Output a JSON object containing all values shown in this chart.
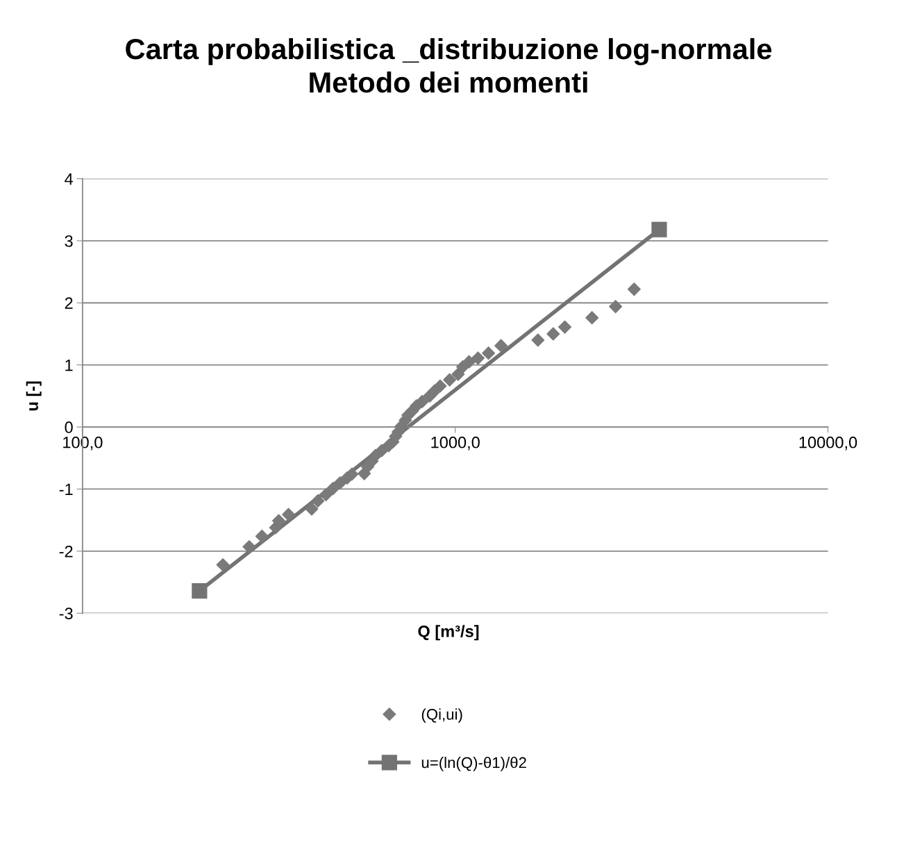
{
  "chart_data": {
    "type": "scatter",
    "title": "Carta probabilistica _distribuzione log-normale\nMetodo dei momenti",
    "xlabel": "Q [m³/s]",
    "ylabel": "u [-]",
    "log": "x",
    "xlim": [
      100,
      10000
    ],
    "xticks": [
      {
        "value": 100,
        "label": "100,0"
      },
      {
        "value": 1000,
        "label": "1000,0"
      },
      {
        "value": 10000,
        "label": "10000,0"
      }
    ],
    "ylim": [
      -3,
      4
    ],
    "yticks": [
      -3,
      -2,
      -1,
      0,
      1,
      2,
      3,
      4
    ],
    "grid": "y",
    "legend": "bottom",
    "series": [
      {
        "name": "(Qi,ui)",
        "marker": "diamond",
        "color": "#7a7a7a",
        "x": [
          238,
          280,
          303,
          330,
          336,
          357,
          412,
          428,
          450,
          470,
          491,
          513,
          528,
          570,
          582,
          598,
          611,
          635,
          663,
          680,
          692,
          703,
          716,
          735,
          747,
          767,
          787,
          815,
          854,
          880,
          911,
          966,
          1018,
          1048,
          1089,
          1151,
          1228,
          1327,
          1667,
          1832,
          1968,
          2328,
          2693,
          3020
        ],
        "values": [
          -2.22,
          -1.93,
          -1.76,
          -1.62,
          -1.51,
          -1.41,
          -1.32,
          -1.19,
          -1.09,
          -0.99,
          -0.9,
          -0.82,
          -0.76,
          -0.75,
          -0.64,
          -0.55,
          -0.46,
          -0.38,
          -0.3,
          -0.24,
          -0.15,
          -0.08,
          0.01,
          0.11,
          0.19,
          0.26,
          0.34,
          0.41,
          0.5,
          0.58,
          0.66,
          0.76,
          0.85,
          0.97,
          1.05,
          1.11,
          1.19,
          1.31,
          1.4,
          1.5,
          1.61,
          1.76,
          1.94,
          2.22
        ]
      },
      {
        "name": "u=(ln(Q)-θ1)/θ2",
        "type": "line",
        "marker": "square",
        "line_style": "solid",
        "color": "#737373",
        "x": [
          206,
          3526
        ],
        "values": [
          -2.64,
          3.18
        ]
      }
    ]
  }
}
